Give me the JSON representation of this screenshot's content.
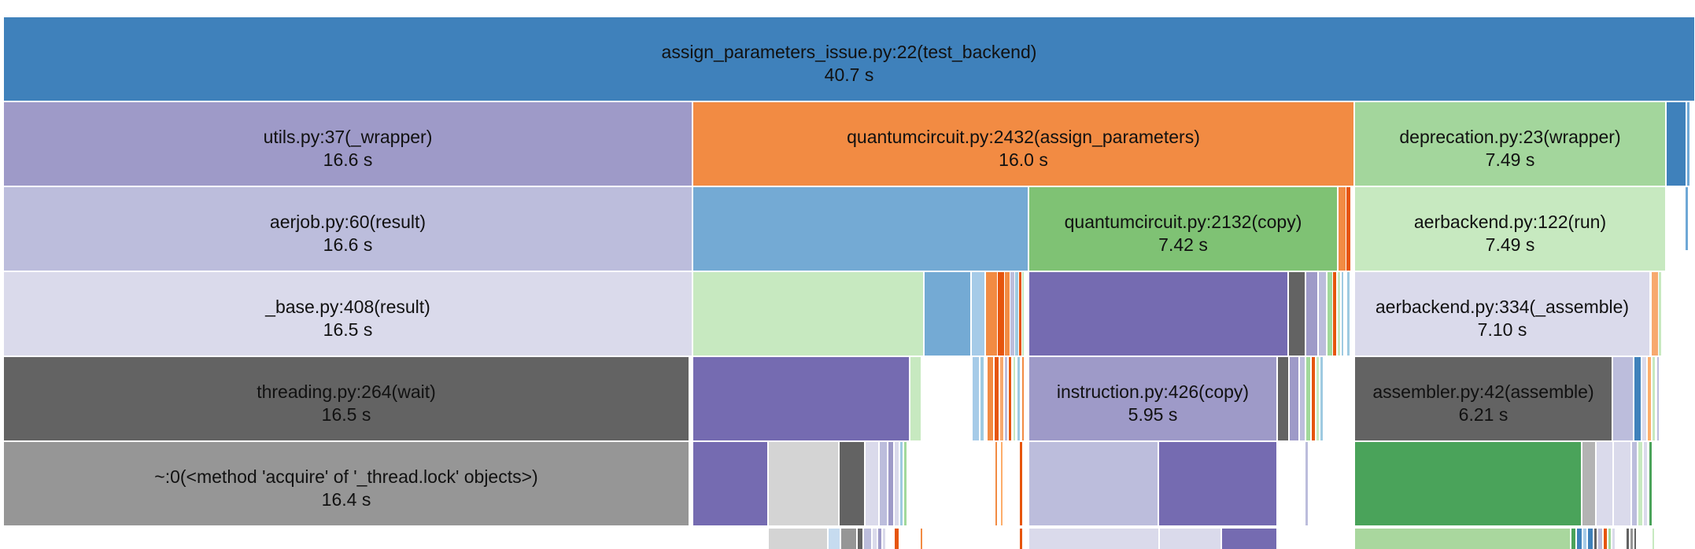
{
  "chart_data": {
    "type": "flame-graph",
    "unit": "s",
    "frames": [
      {
        "label": "assign_parameters_issue.py:22(test_backend)",
        "value": "40.7 s",
        "color": "#3f81bb"
      },
      {
        "label": "utils.py:37(_wrapper)",
        "value": "16.6 s",
        "color": "#9e9ac8"
      },
      {
        "label": "quantumcircuit.py:2432(assign_parameters)",
        "value": "16.0 s",
        "color": "#f28b43"
      },
      {
        "label": "deprecation.py:23(wrapper)",
        "value": "7.49 s",
        "color": "#a3d69c"
      },
      {
        "label": "aerjob.py:60(result)",
        "value": "16.6 s",
        "color": "#bcbddc"
      },
      {
        "label": "quantumcircuit.py:2132(copy)",
        "value": "7.42 s",
        "color": "#7fc274"
      },
      {
        "label": "aerbackend.py:122(run)",
        "value": "7.49 s",
        "color": "#c7e9c0"
      },
      {
        "label": "_base.py:408(result)",
        "value": "16.5 s",
        "color": "#dadaeb"
      },
      {
        "label": "aerbackend.py:334(_assemble)",
        "value": "7.10 s",
        "color": "#dadaeb"
      },
      {
        "label": "threading.py:264(wait)",
        "value": "16.5 s",
        "color": "#636363"
      },
      {
        "label": "instruction.py:426(copy)",
        "value": "5.95 s",
        "color": "#9e9ac8"
      },
      {
        "label": "assembler.py:42(assemble)",
        "value": "6.21 s",
        "color": "#636363"
      },
      {
        "label": "~:0(<method 'acquire' of '_thread.lock' objects>)",
        "value": "16.4 s",
        "color": "#969696"
      }
    ]
  }
}
